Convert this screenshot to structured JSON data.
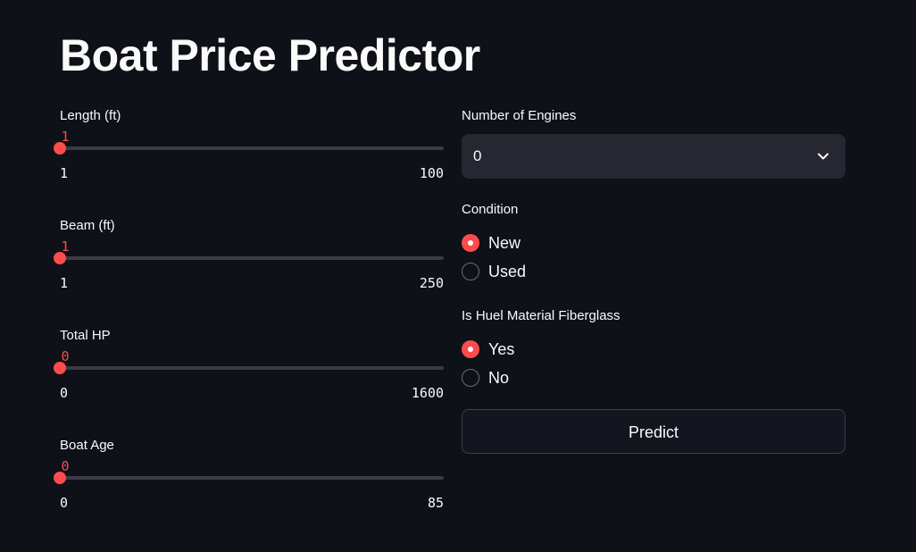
{
  "title": "Boat Price Predictor",
  "accent_color": "#ff4b4b",
  "sliders": [
    {
      "label": "Length (ft)",
      "value": "1",
      "min": "1",
      "max": "100"
    },
    {
      "label": "Beam (ft)",
      "value": "1",
      "min": "1",
      "max": "250"
    },
    {
      "label": "Total HP",
      "value": "0",
      "min": "0",
      "max": "1600"
    },
    {
      "label": "Boat Age",
      "value": "0",
      "min": "0",
      "max": "85"
    }
  ],
  "engines": {
    "label": "Number of Engines",
    "selected": "0",
    "icon": "chevron-down-icon"
  },
  "condition": {
    "label": "Condition",
    "options": [
      "New",
      "Used"
    ],
    "selected": "New"
  },
  "fiberglass": {
    "label": "Is Huel Material Fiberglass",
    "options": [
      "Yes",
      "No"
    ],
    "selected": "Yes"
  },
  "predict_button": {
    "label": "Predict"
  }
}
